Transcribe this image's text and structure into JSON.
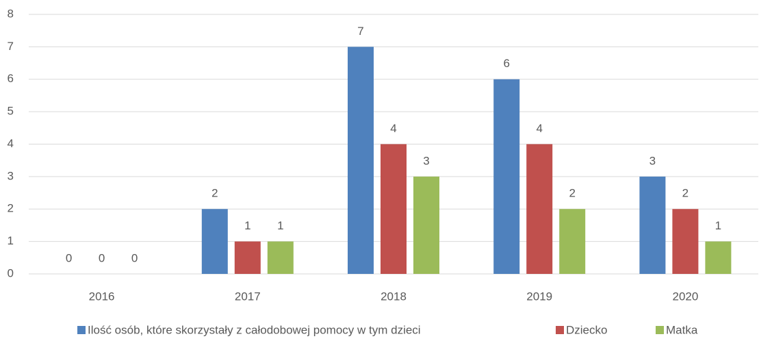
{
  "chart_data": {
    "type": "bar",
    "categories": [
      "2016",
      "2017",
      "2018",
      "2019",
      "2020"
    ],
    "series": [
      {
        "name": "Ilość osób, które skorzystały z całodobowej pomocy w tym dzieci",
        "color": "#4f81bd",
        "values": [
          0,
          2,
          7,
          6,
          3
        ]
      },
      {
        "name": "Dziecko",
        "color": "#c0504d",
        "values": [
          0,
          1,
          4,
          4,
          2
        ]
      },
      {
        "name": "Matka",
        "color": "#9bbb59",
        "values": [
          0,
          1,
          3,
          2,
          1
        ]
      }
    ],
    "ylim": [
      0,
      8
    ],
    "yticks": [
      0,
      1,
      2,
      3,
      4,
      5,
      6,
      7,
      8
    ],
    "grid": true,
    "legend": "bottom",
    "data_labels": true
  }
}
